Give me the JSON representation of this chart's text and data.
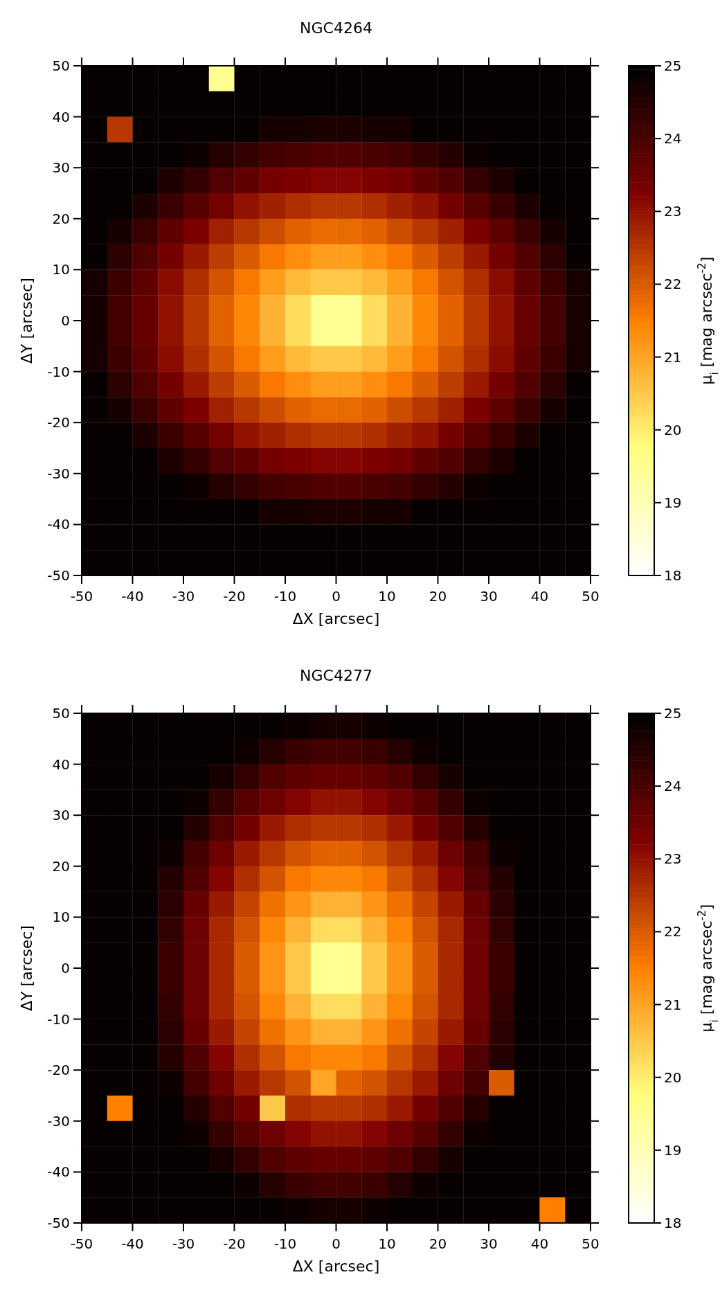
{
  "chart_data": [
    {
      "type": "heatmap",
      "title": "NGC4264",
      "xlabel": "ΔX [arcsec]",
      "ylabel": "ΔY [arcsec]",
      "clabel": "μ$_{i}$ [mag arcsec$^{-2}$]",
      "xlim": [
        -50,
        50
      ],
      "ylim": [
        -50,
        50
      ],
      "xticks": [
        -50,
        -40,
        -30,
        -20,
        -10,
        0,
        10,
        20,
        30,
        40,
        50
      ],
      "yticks": [
        -50,
        -40,
        -30,
        -20,
        -10,
        0,
        10,
        20,
        30,
        40,
        50
      ],
      "clim": [
        18,
        25
      ],
      "cticks": [
        18,
        19,
        20,
        21,
        22,
        23,
        24,
        25
      ],
      "cells": [
        [
          24.9,
          24.9,
          24.9,
          24.9,
          24.9,
          19.5,
          24.9,
          24.9,
          24.9,
          24.9,
          24.9,
          24.9,
          24.9,
          24.9,
          24.9,
          24.9,
          24.9,
          24.9,
          24.9,
          24.9
        ],
        [
          24.9,
          24.9,
          24.9,
          24.9,
          24.9,
          24.9,
          24.9,
          24.9,
          24.9,
          24.9,
          24.9,
          24.9,
          24.9,
          24.9,
          24.9,
          24.9,
          24.9,
          24.9,
          24.9,
          24.9
        ],
        [
          24.9,
          22.5,
          24.9,
          24.9,
          24.9,
          24.9,
          24.9,
          24.7,
          24.7,
          24.6,
          24.6,
          24.7,
          24.7,
          24.9,
          24.9,
          24.9,
          24.9,
          24.9,
          24.9,
          24.9
        ],
        [
          24.9,
          24.9,
          24.9,
          24.9,
          24.8,
          24.5,
          24.3,
          24.1,
          24.0,
          23.9,
          23.9,
          24.0,
          24.1,
          24.3,
          24.5,
          24.8,
          24.9,
          24.9,
          24.9,
          24.9
        ],
        [
          24.9,
          24.9,
          24.9,
          24.6,
          24.3,
          23.9,
          23.7,
          23.4,
          23.3,
          23.2,
          23.2,
          23.3,
          23.4,
          23.7,
          23.9,
          24.3,
          24.6,
          24.9,
          24.9,
          24.9
        ],
        [
          24.9,
          24.9,
          24.6,
          24.2,
          23.8,
          23.4,
          23.0,
          22.8,
          22.6,
          22.5,
          22.5,
          22.6,
          22.8,
          23.0,
          23.4,
          23.8,
          24.2,
          24.6,
          24.9,
          24.9
        ],
        [
          24.9,
          24.7,
          24.2,
          23.7,
          23.3,
          22.8,
          22.5,
          22.2,
          21.9,
          21.8,
          21.8,
          21.9,
          22.2,
          22.5,
          22.8,
          23.3,
          23.7,
          24.2,
          24.7,
          24.9
        ],
        [
          24.9,
          24.4,
          23.9,
          23.4,
          22.9,
          22.4,
          22.0,
          21.6,
          21.3,
          21.1,
          21.1,
          21.3,
          21.6,
          22.0,
          22.4,
          22.9,
          23.4,
          23.9,
          24.4,
          24.9
        ],
        [
          24.7,
          24.2,
          23.7,
          23.1,
          22.6,
          22.1,
          21.6,
          21.1,
          20.7,
          20.5,
          20.5,
          20.7,
          21.1,
          21.6,
          22.1,
          22.6,
          23.1,
          23.7,
          24.2,
          24.7
        ],
        [
          24.7,
          24.1,
          23.6,
          23.0,
          22.5,
          21.9,
          21.4,
          20.8,
          20.2,
          19.5,
          19.5,
          20.2,
          20.8,
          21.4,
          21.9,
          22.5,
          23.0,
          23.6,
          24.1,
          24.7
        ],
        [
          24.7,
          24.1,
          23.6,
          23.0,
          22.5,
          21.9,
          21.4,
          20.8,
          20.2,
          19.5,
          19.5,
          20.2,
          20.8,
          21.4,
          21.9,
          22.5,
          23.0,
          23.6,
          24.1,
          24.7
        ],
        [
          24.7,
          24.2,
          23.7,
          23.1,
          22.6,
          22.1,
          21.6,
          21.1,
          20.7,
          20.5,
          20.5,
          20.7,
          21.1,
          21.6,
          22.1,
          22.6,
          23.1,
          23.7,
          24.2,
          24.7
        ],
        [
          24.9,
          24.4,
          23.9,
          23.4,
          22.9,
          22.4,
          22.0,
          21.6,
          21.3,
          21.1,
          21.1,
          21.3,
          21.6,
          22.0,
          22.4,
          22.9,
          23.4,
          23.9,
          24.4,
          24.9
        ],
        [
          24.9,
          24.7,
          24.2,
          23.7,
          23.3,
          22.8,
          22.5,
          22.2,
          21.9,
          21.8,
          21.8,
          21.9,
          22.2,
          22.5,
          22.8,
          23.3,
          23.7,
          24.2,
          24.7,
          24.9
        ],
        [
          24.9,
          24.9,
          24.6,
          24.2,
          23.8,
          23.4,
          23.0,
          22.8,
          22.6,
          22.5,
          22.5,
          22.6,
          22.8,
          23.0,
          23.4,
          23.8,
          24.2,
          24.6,
          24.9,
          24.9
        ],
        [
          24.9,
          24.9,
          24.9,
          24.6,
          24.3,
          23.9,
          23.7,
          23.4,
          23.3,
          23.2,
          23.2,
          23.3,
          23.4,
          23.7,
          23.9,
          24.3,
          24.6,
          24.9,
          24.9,
          24.9
        ],
        [
          24.9,
          24.9,
          24.9,
          24.9,
          24.8,
          24.5,
          24.3,
          24.1,
          24.0,
          23.9,
          23.9,
          24.0,
          24.1,
          24.3,
          24.5,
          24.8,
          24.9,
          24.9,
          24.9,
          24.9
        ],
        [
          24.9,
          24.9,
          24.9,
          24.9,
          24.9,
          24.9,
          24.9,
          24.7,
          24.7,
          24.6,
          24.6,
          24.7,
          24.7,
          24.9,
          24.9,
          24.9,
          24.9,
          24.9,
          24.9,
          24.9
        ],
        [
          24.9,
          24.9,
          24.9,
          24.9,
          24.9,
          24.9,
          24.9,
          24.9,
          24.9,
          24.9,
          24.9,
          24.9,
          24.9,
          24.9,
          24.9,
          24.9,
          24.9,
          24.9,
          24.9,
          24.9
        ],
        [
          24.9,
          24.9,
          24.9,
          24.9,
          24.9,
          24.9,
          24.9,
          24.9,
          24.9,
          24.9,
          24.9,
          24.9,
          24.9,
          24.9,
          24.9,
          24.9,
          24.9,
          24.9,
          24.9,
          24.9
        ]
      ]
    },
    {
      "type": "heatmap",
      "title": "NGC4277",
      "xlabel": "ΔX [arcsec]",
      "ylabel": "ΔY [arcsec]",
      "clabel": "μ$_{i}$ [mag arcsec$^{-2}$]",
      "xlim": [
        -50,
        50
      ],
      "ylim": [
        -50,
        50
      ],
      "xticks": [
        -50,
        -40,
        -30,
        -20,
        -10,
        0,
        10,
        20,
        30,
        40,
        50
      ],
      "yticks": [
        -50,
        -40,
        -30,
        -20,
        -10,
        0,
        10,
        20,
        30,
        40,
        50
      ],
      "clim": [
        18,
        25
      ],
      "cticks": [
        18,
        19,
        20,
        21,
        22,
        23,
        24,
        25
      ],
      "cells": [
        [
          24.9,
          24.9,
          24.9,
          24.9,
          24.9,
          24.9,
          24.9,
          24.9,
          24.8,
          24.7,
          24.7,
          24.8,
          24.9,
          24.9,
          24.9,
          24.9,
          24.9,
          24.9,
          24.9,
          24.9
        ],
        [
          24.9,
          24.9,
          24.9,
          24.9,
          24.9,
          24.9,
          24.8,
          24.5,
          24.2,
          24.1,
          24.1,
          24.2,
          24.5,
          24.8,
          24.9,
          24.9,
          24.9,
          24.9,
          24.9,
          24.9
        ],
        [
          24.9,
          24.9,
          24.9,
          24.9,
          24.9,
          24.7,
          24.3,
          23.9,
          23.7,
          23.6,
          23.6,
          23.7,
          23.9,
          24.3,
          24.7,
          24.9,
          24.9,
          24.9,
          24.9,
          24.9
        ],
        [
          24.9,
          24.9,
          24.9,
          24.9,
          24.8,
          24.3,
          23.8,
          23.5,
          23.2,
          23.0,
          23.0,
          23.2,
          23.5,
          23.8,
          24.3,
          24.8,
          24.9,
          24.9,
          24.9,
          24.9
        ],
        [
          24.9,
          24.9,
          24.9,
          24.9,
          24.5,
          23.9,
          23.4,
          22.9,
          22.6,
          22.5,
          22.5,
          22.6,
          22.9,
          23.4,
          23.9,
          24.5,
          24.9,
          24.9,
          24.9,
          24.9
        ],
        [
          24.9,
          24.9,
          24.9,
          24.8,
          24.1,
          23.5,
          22.9,
          22.5,
          22.1,
          21.9,
          21.9,
          22.1,
          22.5,
          22.9,
          23.5,
          24.1,
          24.8,
          24.9,
          24.9,
          24.9
        ],
        [
          24.9,
          24.9,
          24.9,
          24.5,
          23.9,
          23.2,
          22.6,
          22.1,
          21.6,
          21.4,
          21.4,
          21.6,
          22.1,
          22.6,
          23.2,
          23.9,
          24.5,
          24.9,
          24.9,
          24.9
        ],
        [
          24.9,
          24.9,
          24.9,
          24.4,
          23.6,
          22.9,
          22.3,
          21.7,
          21.2,
          20.8,
          20.8,
          21.2,
          21.7,
          22.3,
          22.9,
          23.6,
          24.4,
          24.9,
          24.9,
          24.9
        ],
        [
          24.9,
          24.9,
          24.9,
          24.3,
          23.5,
          22.7,
          22.1,
          21.4,
          20.8,
          20.2,
          20.2,
          20.8,
          21.4,
          22.1,
          22.7,
          23.5,
          24.3,
          24.9,
          24.9,
          24.9
        ],
        [
          24.9,
          24.9,
          24.9,
          24.2,
          23.5,
          22.7,
          22.0,
          21.2,
          20.5,
          19.5,
          19.5,
          20.5,
          21.2,
          22.0,
          22.7,
          23.5,
          24.2,
          24.9,
          24.9,
          24.9
        ],
        [
          24.9,
          24.9,
          24.9,
          24.2,
          23.5,
          22.7,
          22.0,
          21.2,
          20.5,
          19.5,
          19.5,
          20.5,
          21.2,
          22.0,
          22.7,
          23.5,
          24.2,
          24.9,
          24.9,
          24.9
        ],
        [
          24.9,
          24.9,
          24.9,
          24.3,
          23.5,
          22.7,
          22.1,
          21.4,
          20.8,
          20.2,
          20.2,
          20.8,
          21.4,
          22.1,
          22.7,
          23.5,
          24.3,
          24.9,
          24.9,
          24.9
        ],
        [
          24.9,
          24.9,
          24.9,
          24.4,
          23.6,
          22.9,
          22.3,
          21.7,
          21.2,
          20.8,
          20.8,
          21.2,
          21.7,
          22.3,
          22.9,
          23.6,
          24.4,
          24.9,
          24.9,
          24.9
        ],
        [
          24.9,
          24.9,
          24.9,
          24.5,
          23.9,
          23.2,
          22.6,
          22.1,
          21.6,
          21.4,
          21.4,
          21.6,
          22.1,
          22.6,
          23.2,
          23.9,
          24.5,
          24.9,
          24.9,
          24.9
        ],
        [
          24.9,
          24.9,
          24.9,
          24.8,
          24.1,
          23.5,
          22.9,
          22.5,
          22.1,
          21.0,
          21.9,
          22.1,
          22.5,
          22.9,
          23.5,
          24.1,
          22.0,
          24.9,
          24.9,
          24.9
        ],
        [
          24.9,
          21.5,
          24.9,
          24.9,
          24.5,
          23.9,
          23.4,
          20.5,
          22.6,
          22.5,
          22.5,
          22.6,
          22.9,
          23.4,
          23.9,
          24.5,
          24.9,
          24.9,
          24.9,
          24.9
        ],
        [
          24.9,
          24.9,
          24.9,
          24.9,
          24.8,
          24.3,
          23.8,
          23.5,
          23.2,
          23.0,
          23.0,
          23.2,
          23.5,
          23.8,
          24.3,
          24.8,
          24.9,
          24.9,
          24.9,
          24.9
        ],
        [
          24.9,
          24.9,
          24.9,
          24.9,
          24.9,
          24.7,
          24.3,
          23.9,
          23.7,
          23.6,
          23.6,
          23.7,
          23.9,
          24.3,
          24.7,
          24.9,
          24.9,
          24.9,
          24.9,
          24.9
        ],
        [
          24.9,
          24.9,
          24.9,
          24.9,
          24.9,
          24.9,
          24.8,
          24.5,
          24.2,
          24.1,
          24.1,
          24.2,
          24.5,
          24.8,
          24.9,
          24.9,
          24.9,
          24.9,
          24.9,
          24.9
        ],
        [
          24.9,
          24.9,
          24.9,
          24.9,
          24.9,
          24.9,
          24.9,
          24.9,
          24.8,
          24.7,
          24.7,
          24.8,
          24.9,
          24.9,
          24.9,
          24.9,
          24.9,
          24.9,
          21.5,
          24.9
        ]
      ]
    }
  ]
}
